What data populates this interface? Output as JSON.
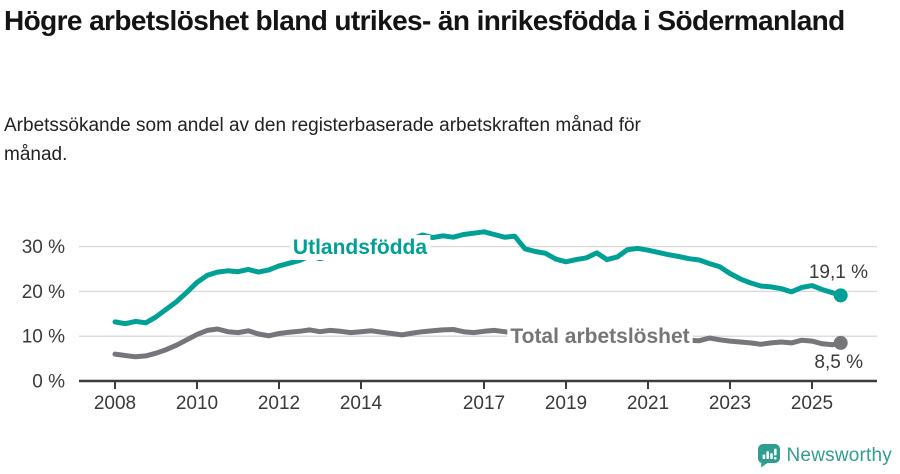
{
  "title": "Högre arbetslöshet bland utrikes- än inrikesfödda i Södermanland",
  "subtitle": "Arbetssökande som andel av den registerbaserade arbetskraften månad för månad.",
  "branding": {
    "logo_text": "Newsworthy"
  },
  "colors": {
    "foreign_born_line": "#00a096",
    "total_line": "#76767a",
    "grid": "#d9d9d9",
    "axis": "#3c3c40",
    "tick_text": "#3a3a3a",
    "annotation_text": "#3a3a3a",
    "brand": "#2f9e90"
  },
  "chart_data": {
    "type": "line",
    "x_unit": "year (monthly series)",
    "y_unit": "percent of registered labour force",
    "x": [
      2008,
      2008.25,
      2008.5,
      2008.75,
      2009,
      2009.25,
      2009.5,
      2009.75,
      2010,
      2010.25,
      2010.5,
      2010.75,
      2011,
      2011.25,
      2011.5,
      2011.75,
      2012,
      2012.25,
      2012.5,
      2012.75,
      2013,
      2013.25,
      2013.5,
      2013.75,
      2014,
      2014.25,
      2014.5,
      2014.75,
      2015,
      2015.25,
      2015.5,
      2015.75,
      2016,
      2016.25,
      2016.5,
      2016.75,
      2017,
      2017.25,
      2017.5,
      2017.75,
      2018,
      2018.25,
      2018.5,
      2018.75,
      2019,
      2019.25,
      2019.5,
      2019.75,
      2020,
      2020.25,
      2020.5,
      2020.75,
      2021,
      2021.25,
      2021.5,
      2021.75,
      2022,
      2022.25,
      2022.5,
      2022.75,
      2023,
      2023.25,
      2023.5,
      2023.75,
      2024,
      2024.25,
      2024.5,
      2024.75,
      2025,
      2025.25,
      2025.5,
      2025.7
    ],
    "series": [
      {
        "name": "Utlandsfödda",
        "color": "#00a096",
        "end_label": "19,1 %",
        "end_value": 19.1,
        "values": [
          13.2,
          12.8,
          13.3,
          13.0,
          14.3,
          16.0,
          17.7,
          19.8,
          22.0,
          23.6,
          24.3,
          24.6,
          24.4,
          24.9,
          24.3,
          24.8,
          25.7,
          26.3,
          26.9,
          27.9,
          27.3,
          27.9,
          28.5,
          29.2,
          29.9,
          30.5,
          31.1,
          31.7,
          32.0,
          31.7,
          32.6,
          32.0,
          32.4,
          32.1,
          32.7,
          33.0,
          33.3,
          32.7,
          32.1,
          32.3,
          29.5,
          28.9,
          28.5,
          27.2,
          26.6,
          27.1,
          27.5,
          28.6,
          27.1,
          27.7,
          29.3,
          29.6,
          29.2,
          28.7,
          28.2,
          27.8,
          27.3,
          27.0,
          26.2,
          25.5,
          24.0,
          22.8,
          21.9,
          21.2,
          21.0,
          20.6,
          19.9,
          20.9,
          21.3,
          20.4,
          19.7,
          19.1
        ]
      },
      {
        "name": "Total arbetslöshet",
        "color": "#76767a",
        "end_label": "8,5 %",
        "end_value": 8.5,
        "values": [
          6.0,
          5.7,
          5.4,
          5.6,
          6.2,
          7.0,
          8.0,
          9.2,
          10.4,
          11.3,
          11.6,
          11.0,
          10.8,
          11.2,
          10.5,
          10.1,
          10.6,
          10.9,
          11.1,
          11.4,
          11.0,
          11.3,
          11.1,
          10.8,
          11.0,
          11.2,
          10.9,
          10.6,
          10.3,
          10.7,
          11.0,
          11.2,
          11.4,
          11.5,
          11.0,
          10.8,
          11.1,
          11.3,
          11.0,
          10.7,
          10.4,
          10.2,
          10.0,
          9.9,
          9.8,
          9.9,
          9.7,
          9.8,
          9.6,
          10.2,
          10.4,
          10.1,
          9.9,
          9.7,
          9.5,
          9.3,
          9.1,
          9.0,
          9.6,
          9.2,
          8.9,
          8.7,
          8.5,
          8.2,
          8.5,
          8.7,
          8.5,
          9.1,
          8.9,
          8.3,
          8.1,
          8.5
        ]
      }
    ],
    "yticks": [
      {
        "value": 0,
        "label": "0 %"
      },
      {
        "value": 10,
        "label": "10 %"
      },
      {
        "value": 20,
        "label": "20 %"
      },
      {
        "value": 30,
        "label": "30 %"
      }
    ],
    "xticks": [
      {
        "value": 2008,
        "label": "2008"
      },
      {
        "value": 2010,
        "label": "2010"
      },
      {
        "value": 2012,
        "label": "2012"
      },
      {
        "value": 2014,
        "label": "2014"
      },
      {
        "value": 2017,
        "label": "2017"
      },
      {
        "value": 2019,
        "label": "2019"
      },
      {
        "value": 2021,
        "label": "2021"
      },
      {
        "value": 2023,
        "label": "2023"
      },
      {
        "value": 2025,
        "label": "2025"
      }
    ],
    "ylim": [
      0,
      37.5
    ],
    "xlim": [
      2007.1,
      2026.6
    ],
    "grid": "horizontal",
    "legend_position": "inline-on-lines"
  }
}
